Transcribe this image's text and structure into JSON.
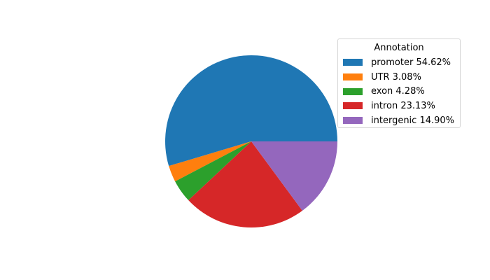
{
  "chart_data": {
    "type": "pie",
    "start_angle_deg": 0,
    "direction": "counterclockwise",
    "legend_title": "Annotation",
    "legend_position": "upper-right",
    "slices": [
      {
        "label": "promoter 54.62%",
        "value": 54.62,
        "color": "#1f77b4"
      },
      {
        "label": "UTR 3.08%",
        "value": 3.08,
        "color": "#ff7f0e"
      },
      {
        "label": "exon 4.28%",
        "value": 4.28,
        "color": "#2ca02c"
      },
      {
        "label": "intron 23.13%",
        "value": 23.13,
        "color": "#d62728"
      },
      {
        "label": "intergenic 14.90%",
        "value": 14.9,
        "color": "#9467bd"
      }
    ]
  }
}
